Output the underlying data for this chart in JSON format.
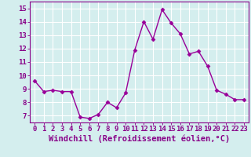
{
  "x": [
    0,
    1,
    2,
    3,
    4,
    5,
    6,
    7,
    8,
    9,
    10,
    11,
    12,
    13,
    14,
    15,
    16,
    17,
    18,
    19,
    20,
    21,
    22,
    23
  ],
  "y": [
    9.6,
    8.8,
    8.9,
    8.8,
    8.8,
    6.9,
    6.8,
    7.1,
    8.0,
    7.6,
    8.7,
    11.9,
    14.0,
    12.7,
    14.9,
    13.9,
    13.1,
    11.6,
    11.8,
    10.7,
    8.9,
    8.6,
    8.2,
    8.2
  ],
  "line_color": "#990099",
  "marker": "D",
  "markersize": 2.5,
  "linewidth": 1.0,
  "xlabel": "Windchill (Refroidissement éolien,°C)",
  "ylim": [
    6.5,
    15.5
  ],
  "xlim": [
    -0.5,
    23.5
  ],
  "yticks": [
    7,
    8,
    9,
    10,
    11,
    12,
    13,
    14,
    15
  ],
  "xticks": [
    0,
    1,
    2,
    3,
    4,
    5,
    6,
    7,
    8,
    9,
    10,
    11,
    12,
    13,
    14,
    15,
    16,
    17,
    18,
    19,
    20,
    21,
    22,
    23
  ],
  "background_color": "#d4eeee",
  "grid_color": "#ffffff",
  "grid_linewidth": 0.8,
  "tick_labelsize": 6.5,
  "xlabel_fontsize": 7.5,
  "label_color": "#880088",
  "spine_color": "#880088"
}
